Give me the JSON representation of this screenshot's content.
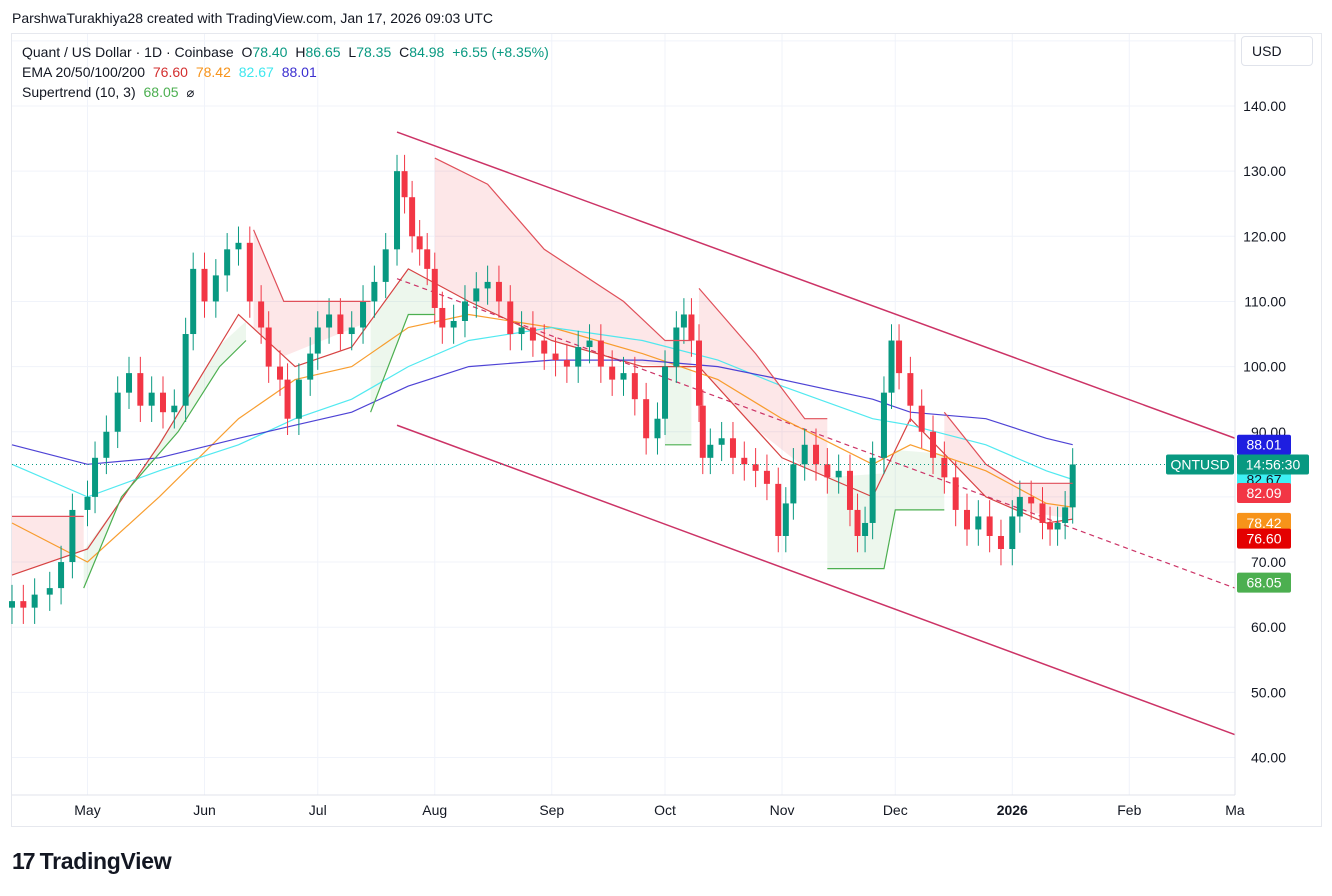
{
  "header": {
    "credit": "ParshwaTurakhiya28 created with TradingView.com, Jan 17, 2026 09:03 UTC"
  },
  "legend": {
    "symbol_line": "Quant / US Dollar · 1D · Coinbase",
    "ohlc": {
      "o_label": "O",
      "o": "78.40",
      "h_label": "H",
      "h": "86.65",
      "l_label": "L",
      "l": "78.35",
      "c_label": "C",
      "c": "84.98",
      "change": "+6.55 (+8.35%)"
    },
    "ema_label": "EMA 20/50/100/200",
    "ema_values": [
      "76.60",
      "78.42",
      "82.67",
      "88.01"
    ],
    "supertrend_label": "Supertrend (10, 3)",
    "supertrend_value": "68.05",
    "supertrend_icon": "visibility-off-icon"
  },
  "price_axis": {
    "currency": "USD",
    "ticks": [
      "140.00",
      "130.00",
      "120.00",
      "110.00",
      "100.00",
      "90.00",
      "70.00",
      "60.00",
      "50.00",
      "40.00"
    ]
  },
  "time_axis": {
    "ticks": [
      "May",
      "Jun",
      "Jul",
      "Aug",
      "Sep",
      "Oct",
      "Nov",
      "Dec",
      "2026",
      "Feb",
      "Ma"
    ]
  },
  "price_badges": {
    "symbol": "QNTUSD",
    "countdown": "14:56:30",
    "ema200": "88.01",
    "ema100": "82.67",
    "supertrend_upper": "82.09",
    "ema50": "78.42",
    "ema20": "76.60",
    "supertrend_lower": "68.05"
  },
  "colors": {
    "up": "#089981",
    "down": "#f23645",
    "ema20": "#d32f2f",
    "ema50": "#f7931a",
    "ema100": "#3ee7ee",
    "ema200": "#3b2fd0",
    "st_up": "#4caf50",
    "st_down": "#e0505a",
    "channel": "#cc3366"
  },
  "brand": {
    "name": "TradingView",
    "icon": "tradingview-logo-icon"
  },
  "chart_data": {
    "type": "candlestick",
    "title": "Quant / US Dollar · 1D · Coinbase",
    "ylim": [
      35,
      148
    ],
    "y_scale": "linear",
    "grid": true,
    "x_range": [
      "2025-04-11",
      "2026-03-01"
    ],
    "last_close": 84.98,
    "daily_closes": [
      {
        "x": "2025-04-11",
        "close": 64
      },
      {
        "x": "2025-04-14",
        "close": 63
      },
      {
        "x": "2025-04-17",
        "close": 65
      },
      {
        "x": "2025-04-21",
        "close": 66
      },
      {
        "x": "2025-04-24",
        "close": 70
      },
      {
        "x": "2025-04-27",
        "close": 78
      },
      {
        "x": "2025-05-01",
        "close": 80
      },
      {
        "x": "2025-05-03",
        "close": 86
      },
      {
        "x": "2025-05-06",
        "close": 90
      },
      {
        "x": "2025-05-09",
        "close": 96
      },
      {
        "x": "2025-05-12",
        "close": 99
      },
      {
        "x": "2025-05-15",
        "close": 94
      },
      {
        "x": "2025-05-18",
        "close": 96
      },
      {
        "x": "2025-05-21",
        "close": 93
      },
      {
        "x": "2025-05-24",
        "close": 94
      },
      {
        "x": "2025-05-27",
        "close": 105
      },
      {
        "x": "2025-05-29",
        "close": 115
      },
      {
        "x": "2025-06-01",
        "close": 110
      },
      {
        "x": "2025-06-04",
        "close": 114
      },
      {
        "x": "2025-06-07",
        "close": 118
      },
      {
        "x": "2025-06-10",
        "close": 119
      },
      {
        "x": "2025-06-13",
        "close": 110
      },
      {
        "x": "2025-06-16",
        "close": 106
      },
      {
        "x": "2025-06-18",
        "close": 100
      },
      {
        "x": "2025-06-21",
        "close": 98
      },
      {
        "x": "2025-06-23",
        "close": 92
      },
      {
        "x": "2025-06-26",
        "close": 98
      },
      {
        "x": "2025-06-29",
        "close": 102
      },
      {
        "x": "2025-07-01",
        "close": 106
      },
      {
        "x": "2025-07-04",
        "close": 108
      },
      {
        "x": "2025-07-07",
        "close": 105
      },
      {
        "x": "2025-07-10",
        "close": 106
      },
      {
        "x": "2025-07-13",
        "close": 110
      },
      {
        "x": "2025-07-16",
        "close": 113
      },
      {
        "x": "2025-07-19",
        "close": 118
      },
      {
        "x": "2025-07-22",
        "close": 130
      },
      {
        "x": "2025-07-24",
        "close": 126
      },
      {
        "x": "2025-07-26",
        "close": 120
      },
      {
        "x": "2025-07-28",
        "close": 118
      },
      {
        "x": "2025-07-30",
        "close": 115
      },
      {
        "x": "2025-08-01",
        "close": 109
      },
      {
        "x": "2025-08-03",
        "close": 106
      },
      {
        "x": "2025-08-06",
        "close": 107
      },
      {
        "x": "2025-08-09",
        "close": 110
      },
      {
        "x": "2025-08-12",
        "close": 112
      },
      {
        "x": "2025-08-15",
        "close": 113
      },
      {
        "x": "2025-08-18",
        "close": 110
      },
      {
        "x": "2025-08-21",
        "close": 105
      },
      {
        "x": "2025-08-24",
        "close": 106
      },
      {
        "x": "2025-08-27",
        "close": 104
      },
      {
        "x": "2025-08-30",
        "close": 102
      },
      {
        "x": "2025-09-02",
        "close": 101
      },
      {
        "x": "2025-09-05",
        "close": 100
      },
      {
        "x": "2025-09-08",
        "close": 103
      },
      {
        "x": "2025-09-11",
        "close": 104
      },
      {
        "x": "2025-09-14",
        "close": 100
      },
      {
        "x": "2025-09-17",
        "close": 98
      },
      {
        "x": "2025-09-20",
        "close": 99
      },
      {
        "x": "2025-09-23",
        "close": 95
      },
      {
        "x": "2025-09-26",
        "close": 89
      },
      {
        "x": "2025-09-29",
        "close": 92
      },
      {
        "x": "2025-10-01",
        "close": 100
      },
      {
        "x": "2025-10-04",
        "close": 106
      },
      {
        "x": "2025-10-06",
        "close": 108
      },
      {
        "x": "2025-10-08",
        "close": 104
      },
      {
        "x": "2025-10-10",
        "close": 94
      },
      {
        "x": "2025-10-11",
        "close": 86
      },
      {
        "x": "2025-10-13",
        "close": 88
      },
      {
        "x": "2025-10-16",
        "close": 89
      },
      {
        "x": "2025-10-19",
        "close": 86
      },
      {
        "x": "2025-10-22",
        "close": 85
      },
      {
        "x": "2025-10-25",
        "close": 84
      },
      {
        "x": "2025-10-28",
        "close": 82
      },
      {
        "x": "2025-10-31",
        "close": 74
      },
      {
        "x": "2025-11-02",
        "close": 79
      },
      {
        "x": "2025-11-04",
        "close": 85
      },
      {
        "x": "2025-11-07",
        "close": 88
      },
      {
        "x": "2025-11-10",
        "close": 85
      },
      {
        "x": "2025-11-13",
        "close": 83
      },
      {
        "x": "2025-11-16",
        "close": 84
      },
      {
        "x": "2025-11-19",
        "close": 78
      },
      {
        "x": "2025-11-21",
        "close": 74
      },
      {
        "x": "2025-11-23",
        "close": 76
      },
      {
        "x": "2025-11-25",
        "close": 86
      },
      {
        "x": "2025-11-28",
        "close": 96
      },
      {
        "x": "2025-11-30",
        "close": 104
      },
      {
        "x": "2025-12-02",
        "close": 99
      },
      {
        "x": "2025-12-05",
        "close": 94
      },
      {
        "x": "2025-12-08",
        "close": 90
      },
      {
        "x": "2025-12-11",
        "close": 86
      },
      {
        "x": "2025-12-14",
        "close": 83
      },
      {
        "x": "2025-12-17",
        "close": 78
      },
      {
        "x": "2025-12-20",
        "close": 75
      },
      {
        "x": "2025-12-23",
        "close": 77
      },
      {
        "x": "2025-12-26",
        "close": 74
      },
      {
        "x": "2025-12-29",
        "close": 72
      },
      {
        "x": "2026-01-01",
        "close": 77
      },
      {
        "x": "2026-01-03",
        "close": 80
      },
      {
        "x": "2026-01-06",
        "close": 79
      },
      {
        "x": "2026-01-09",
        "close": 76
      },
      {
        "x": "2026-01-11",
        "close": 75
      },
      {
        "x": "2026-01-13",
        "close": 76
      },
      {
        "x": "2026-01-15",
        "close": 78.4
      },
      {
        "x": "2026-01-17",
        "close": 84.98
      }
    ],
    "ema_series": [
      {
        "name": "EMA 20",
        "last": 76.6,
        "points": [
          [
            "2025-04-11",
            68
          ],
          [
            "2025-05-01",
            72
          ],
          [
            "2025-05-20",
            88
          ],
          [
            "2025-06-10",
            108
          ],
          [
            "2025-06-25",
            100
          ],
          [
            "2025-07-10",
            103
          ],
          [
            "2025-07-25",
            115
          ],
          [
            "2025-08-10",
            110
          ],
          [
            "2025-09-01",
            104
          ],
          [
            "2025-09-25",
            100
          ],
          [
            "2025-10-10",
            100
          ],
          [
            "2025-11-01",
            86
          ],
          [
            "2025-11-25",
            80
          ],
          [
            "2025-12-05",
            92
          ],
          [
            "2025-12-25",
            80
          ],
          [
            "2026-01-10",
            76
          ],
          [
            "2026-01-17",
            76.6
          ]
        ]
      },
      {
        "name": "EMA 50",
        "last": 78.42,
        "points": [
          [
            "2025-04-11",
            76
          ],
          [
            "2025-05-01",
            70
          ],
          [
            "2025-05-20",
            80
          ],
          [
            "2025-06-10",
            92
          ],
          [
            "2025-06-25",
            98
          ],
          [
            "2025-07-10",
            100
          ],
          [
            "2025-07-25",
            106
          ],
          [
            "2025-08-10",
            108
          ],
          [
            "2025-09-01",
            106
          ],
          [
            "2025-09-25",
            102
          ],
          [
            "2025-10-15",
            98
          ],
          [
            "2025-11-01",
            92
          ],
          [
            "2025-11-25",
            85
          ],
          [
            "2025-12-05",
            88
          ],
          [
            "2025-12-25",
            84
          ],
          [
            "2026-01-10",
            79
          ],
          [
            "2026-01-17",
            78.42
          ]
        ]
      },
      {
        "name": "EMA 100",
        "last": 82.67,
        "points": [
          [
            "2025-04-11",
            85
          ],
          [
            "2025-05-01",
            80
          ],
          [
            "2025-05-20",
            84
          ],
          [
            "2025-06-10",
            88
          ],
          [
            "2025-06-25",
            92
          ],
          [
            "2025-07-10",
            95
          ],
          [
            "2025-07-25",
            100
          ],
          [
            "2025-08-10",
            104
          ],
          [
            "2025-09-01",
            106
          ],
          [
            "2025-09-25",
            104
          ],
          [
            "2025-10-15",
            101
          ],
          [
            "2025-11-01",
            97
          ],
          [
            "2025-11-25",
            92
          ],
          [
            "2025-12-05",
            91
          ],
          [
            "2025-12-25",
            88
          ],
          [
            "2026-01-10",
            84
          ],
          [
            "2026-01-17",
            82.67
          ]
        ]
      },
      {
        "name": "EMA 200",
        "last": 88.01,
        "points": [
          [
            "2025-04-11",
            88
          ],
          [
            "2025-05-01",
            85
          ],
          [
            "2025-05-20",
            86
          ],
          [
            "2025-06-10",
            89
          ],
          [
            "2025-06-25",
            91
          ],
          [
            "2025-07-10",
            93
          ],
          [
            "2025-07-25",
            97
          ],
          [
            "2025-08-10",
            100
          ],
          [
            "2025-09-01",
            101
          ],
          [
            "2025-09-25",
            101
          ],
          [
            "2025-10-15",
            100
          ],
          [
            "2025-11-01",
            98
          ],
          [
            "2025-11-25",
            95
          ],
          [
            "2025-12-05",
            93
          ],
          [
            "2025-12-25",
            92
          ],
          [
            "2026-01-10",
            89
          ],
          [
            "2026-01-17",
            88.01
          ]
        ]
      }
    ],
    "supertrend": {
      "label": "Supertrend (10, 3)",
      "last_lower": 68.05,
      "last_upper": 82.09,
      "segments": [
        {
          "trend": "down",
          "points": [
            [
              "2025-04-11",
              77
            ],
            [
              "2025-04-30",
              77
            ]
          ]
        },
        {
          "trend": "up",
          "points": [
            [
              "2025-04-30",
              66
            ],
            [
              "2025-05-10",
              80
            ],
            [
              "2025-05-25",
              90
            ],
            [
              "2025-06-05",
              100
            ],
            [
              "2025-06-12",
              104
            ]
          ]
        },
        {
          "trend": "down",
          "points": [
            [
              "2025-06-14",
              121
            ],
            [
              "2025-06-22",
              110
            ],
            [
              "2025-07-15",
              110
            ]
          ]
        },
        {
          "trend": "up",
          "points": [
            [
              "2025-07-15",
              93
            ],
            [
              "2025-07-25",
              108
            ],
            [
              "2025-08-01",
              108
            ]
          ]
        },
        {
          "trend": "down",
          "points": [
            [
              "2025-08-01",
              132
            ],
            [
              "2025-08-15",
              128
            ],
            [
              "2025-08-30",
              118
            ],
            [
              "2025-09-20",
              110
            ],
            [
              "2025-10-01",
              104
            ],
            [
              "2025-10-08",
              104
            ]
          ]
        },
        {
          "trend": "up",
          "points": [
            [
              "2025-10-01",
              88
            ],
            [
              "2025-10-08",
              88
            ]
          ]
        },
        {
          "trend": "down",
          "points": [
            [
              "2025-10-10",
              112
            ],
            [
              "2025-10-25",
              102
            ],
            [
              "2025-11-07",
              92
            ],
            [
              "2025-11-13",
              92
            ]
          ]
        },
        {
          "trend": "up",
          "points": [
            [
              "2025-11-13",
              69
            ],
            [
              "2025-11-28",
              69
            ],
            [
              "2025-12-01",
              78
            ],
            [
              "2025-12-14",
              78
            ]
          ]
        },
        {
          "trend": "down",
          "points": [
            [
              "2025-12-14",
              93
            ],
            [
              "2025-12-25",
              85
            ],
            [
              "2026-01-02",
              82.09
            ],
            [
              "2026-01-17",
              82.09
            ]
          ]
        },
        {
          "trend": "up",
          "points": [
            [
              "2026-01-17",
              68.05
            ]
          ]
        }
      ]
    },
    "channel": {
      "upper": [
        [
          "2025-07-22",
          136
        ],
        [
          "2026-03-01",
          89
        ]
      ],
      "lower": [
        [
          "2025-07-22",
          91
        ],
        [
          "2026-03-01",
          43.5
        ]
      ],
      "mid": [
        [
          "2025-07-22",
          113.5
        ],
        [
          "2026-03-01",
          66
        ]
      ]
    }
  }
}
